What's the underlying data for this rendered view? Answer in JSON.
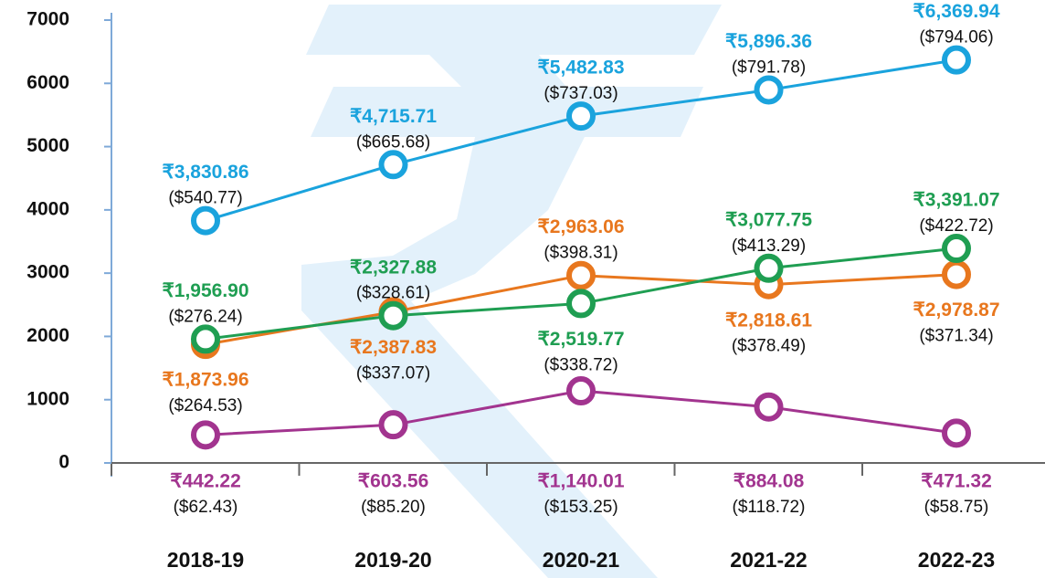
{
  "chart_data": {
    "type": "line",
    "categories": [
      "2018-19",
      "2019-20",
      "2020-21",
      "2021-22",
      "2022-23"
    ],
    "series": [
      {
        "color": "#1aa3dd",
        "values": [
          3830.86,
          4715.71,
          5482.83,
          5896.36,
          6369.94
        ],
        "value_labels": [
          "₹3,830.86",
          "₹4,715.71",
          "₹5,482.83",
          "₹5,896.36",
          "₹6,369.94"
        ],
        "secondary_labels": [
          "($540.77)",
          "($665.68)",
          "($737.03)",
          "($791.78)",
          "($794.06)"
        ]
      },
      {
        "color": "#e8771e",
        "values": [
          1873.96,
          2387.83,
          2963.06,
          2818.61,
          2978.87
        ],
        "value_labels": [
          "₹1,873.96",
          "₹2,387.83",
          "₹2,963.06",
          "₹2,818.61",
          "₹2,978.87"
        ],
        "secondary_labels": [
          "($264.53)",
          "($337.07)",
          "($398.31)",
          "($378.49)",
          "($371.34)"
        ]
      },
      {
        "color": "#1f9e52",
        "values": [
          1956.9,
          2327.88,
          2519.77,
          3077.75,
          3391.07
        ],
        "value_labels": [
          "₹1,956.90",
          "₹2,327.88",
          "₹2,519.77",
          "₹3,077.75",
          "₹3,391.07"
        ],
        "secondary_labels": [
          "($276.24)",
          "($328.61)",
          "($338.72)",
          "($413.29)",
          "($422.72)"
        ]
      },
      {
        "color": "#a2348f",
        "values": [
          442.22,
          603.56,
          1140.01,
          884.08,
          471.32
        ],
        "value_labels": [
          "₹442.22",
          "₹603.56",
          "₹1,140.01",
          "₹884.08",
          "₹471.32"
        ],
        "secondary_labels": [
          "($62.43)",
          "($85.20)",
          "($153.25)",
          "($118.72)",
          "($58.75)"
        ]
      }
    ],
    "ylim": [
      0,
      7000
    ],
    "yticks": [
      0,
      1000,
      2000,
      3000,
      4000,
      5000,
      6000,
      7000
    ],
    "grid": false
  }
}
